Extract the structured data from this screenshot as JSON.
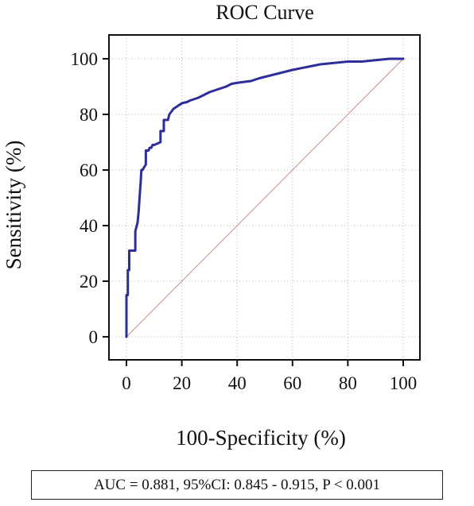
{
  "chart_data": {
    "type": "line",
    "title": "ROC Curve",
    "xlabel": "100-Specificity (%)",
    "ylabel": "Sensitivity (%)",
    "xlim": [
      0,
      100
    ],
    "ylim": [
      0,
      100
    ],
    "xticks": [
      0,
      20,
      40,
      60,
      80,
      100
    ],
    "yticks": [
      0,
      20,
      40,
      60,
      80,
      100
    ],
    "grid": true,
    "series": [
      {
        "kind": "roc-curve",
        "color": "#2e2e9a",
        "x": [
          0,
          0,
          0.5,
          0.5,
          1,
          1,
          1.5,
          1.5,
          3.2,
          3.2,
          4,
          4.4,
          4.8,
          5.1,
          5.4,
          5.8,
          7,
          7,
          8,
          8.4,
          9,
          9.4,
          10,
          12.3,
          12.3,
          13.5,
          13.5,
          15,
          15.5,
          17,
          18.5,
          20,
          22,
          23,
          24.5,
          26,
          28,
          30,
          33,
          36,
          38,
          41,
          45,
          48,
          52,
          56,
          60,
          65,
          70,
          75,
          80,
          85,
          90,
          95,
          100
        ],
        "y": [
          0,
          15,
          15,
          24,
          24,
          31,
          31,
          31,
          31,
          38,
          41,
          45,
          51,
          55,
          60,
          60,
          62,
          67,
          67,
          68,
          68,
          69,
          69,
          70,
          74,
          74,
          78,
          78,
          80,
          82,
          83,
          84,
          84.5,
          85,
          85.5,
          86,
          87,
          88,
          89,
          90,
          91,
          91.5,
          92,
          93,
          94,
          95,
          96,
          97,
          98,
          98.5,
          99,
          99,
          99.5,
          100,
          100
        ]
      },
      {
        "kind": "reference-diagonal",
        "color": "#d08a8a",
        "x": [
          0,
          100
        ],
        "y": [
          0,
          100
        ]
      }
    ]
  },
  "annotation": {
    "text": "AUC = 0.881, 95%CI: 0.845 - 0.915, P < 0.001"
  }
}
